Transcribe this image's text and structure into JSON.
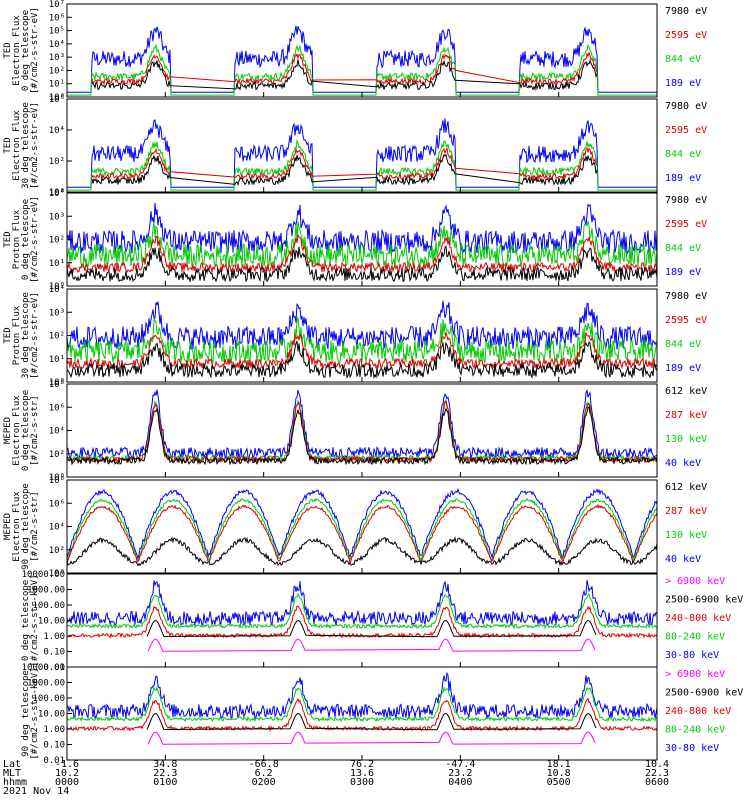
{
  "panels": [
    {
      "ylabel": [
        "TED",
        "Electron Flux",
        "0 deg telescope",
        "[#/cm2-s-str-eV]"
      ],
      "ticks": [
        "10⁰",
        "10¹",
        "10²",
        "10³",
        "10⁴",
        "10⁵",
        "10⁶",
        "10⁷"
      ],
      "legend": [
        {
          "text": "7980 eV",
          "color": "#000000"
        },
        {
          "text": "2595 eV",
          "color": "#e00000"
        },
        {
          "text": "844 eV",
          "color": "#00cc00"
        },
        {
          "text": "189 eV",
          "color": "#0000ff"
        }
      ]
    },
    {
      "ylabel": [
        "TED",
        "Electron Flux",
        "30 deg telescope",
        "[#/cm2-s-str-eV]"
      ],
      "ticks": [
        "10⁰",
        "10²",
        "10⁴",
        "10⁶"
      ],
      "legend": [
        {
          "text": "7980 eV",
          "color": "#000000"
        },
        {
          "text": "2595 eV",
          "color": "#e00000"
        },
        {
          "text": "844 eV",
          "color": "#00cc00"
        },
        {
          "text": "189 eV",
          "color": "#0000ff"
        }
      ]
    },
    {
      "ylabel": [
        "TED",
        "Proton Flux",
        "0 deg telescope",
        "[#/cm2-s-str-eV]"
      ],
      "ticks": [
        "10⁰",
        "10¹",
        "10²",
        "10³",
        "10⁴"
      ],
      "legend": [
        {
          "text": "7980 eV",
          "color": "#000000"
        },
        {
          "text": "2595 eV",
          "color": "#e00000"
        },
        {
          "text": "844 eV",
          "color": "#00cc00"
        },
        {
          "text": "189 eV",
          "color": "#0000ff"
        }
      ]
    },
    {
      "ylabel": [
        "TED",
        "Proton Flux",
        "30 deg telescope",
        "[#/cm2-s-str-eV]"
      ],
      "ticks": [
        "10⁰",
        "10¹",
        "10²",
        "10³",
        "10⁴"
      ],
      "legend": [
        {
          "text": "7980 eV",
          "color": "#000000"
        },
        {
          "text": "2595 eV",
          "color": "#e00000"
        },
        {
          "text": "844 eV",
          "color": "#00cc00"
        },
        {
          "text": "189 eV",
          "color": "#0000ff"
        }
      ]
    },
    {
      "ylabel": [
        "MEPED",
        "Electron Flux",
        "0 deg telescope",
        "[#/cm2-s-str]"
      ],
      "ticks": [
        "10⁰",
        "10²",
        "10⁴",
        "10⁶",
        "10⁸"
      ],
      "legend": [
        {
          "text": "612 keV",
          "color": "#000000"
        },
        {
          "text": "287 keV",
          "color": "#e00000"
        },
        {
          "text": "130 keV",
          "color": "#00cc00"
        },
        {
          "text": "40 keV",
          "color": "#0000ff"
        }
      ]
    },
    {
      "ylabel": [
        "MEPED",
        "Electron Flux",
        "90 deg telescope",
        "[#/cm2-s-str]"
      ],
      "ticks": [
        "10⁰",
        "10²",
        "10⁴",
        "10⁶",
        "10⁸"
      ],
      "legend": [
        {
          "text": "612 keV",
          "color": "#000000"
        },
        {
          "text": "287 keV",
          "color": "#e00000"
        },
        {
          "text": "130 keV",
          "color": "#00cc00"
        },
        {
          "text": "40 keV",
          "color": "#0000ff"
        }
      ]
    },
    {
      "ylabel": [
        "0 deg telescope",
        "[#/cm2-s-str-keV]"
      ],
      "ticks": [
        "0.01",
        "0.10",
        "1.00",
        "10.00",
        "100.00",
        "1000.00",
        "10000.00"
      ],
      "legend": [
        {
          "text": "> 6900 keV",
          "color": "#ff00ff"
        },
        {
          "text": "2500-6900 keV",
          "color": "#000000"
        },
        {
          "text": "240-800 keV",
          "color": "#e00000"
        },
        {
          "text": "80-240 keV",
          "color": "#00cc00"
        },
        {
          "text": "30-80 keV",
          "color": "#0000ff"
        }
      ]
    },
    {
      "ylabel": [
        "90 deg telescope",
        "[#/cm2-s-str-keV]"
      ],
      "ticks": [
        "0.01",
        "0.10",
        "1.00",
        "10.00",
        "100.00",
        "1000.00",
        "10000.00"
      ],
      "legend": [
        {
          "text": "> 6900 keV",
          "color": "#ff00ff"
        },
        {
          "text": "2500-6900 keV",
          "color": "#000000"
        },
        {
          "text": "240-800 keV",
          "color": "#e00000"
        },
        {
          "text": "80-240 keV",
          "color": "#00cc00"
        },
        {
          "text": "30-80 keV",
          "color": "#0000ff"
        }
      ]
    }
  ],
  "xaxis": {
    "row_labels": [
      "Lat",
      "MLT",
      "hhmm",
      "2021 Nov 14"
    ],
    "lat": [
      "-1.6",
      "34.8",
      "-66.8",
      "76.2",
      "-47.4",
      "18.1",
      "10.4"
    ],
    "mlt": [
      "10.2",
      "22.3",
      "6.2",
      "13.6",
      "23.2",
      "10.8",
      "22.3"
    ],
    "hhmm": [
      "0000",
      "0100",
      "0200",
      "0300",
      "0400",
      "0500",
      "0600"
    ]
  },
  "chart_data": {
    "type": "line",
    "title": "",
    "x_range_hours": [
      0,
      6
    ],
    "yscale": "log",
    "x": [
      "0000",
      "0100",
      "0200",
      "0300",
      "0400",
      "0500",
      "0600"
    ],
    "passes_hours": [
      0.9,
      2.35,
      3.85,
      5.3
    ],
    "series": [
      {
        "name": "189 eV",
        "color": "#0000ff"
      },
      {
        "name": "844 eV",
        "color": "#00cc00"
      },
      {
        "name": "2595 eV",
        "color": "#e00000"
      },
      {
        "name": "7980 eV",
        "color": "#000000"
      }
    ]
  },
  "colors": {
    "blue": "#0000ff",
    "green": "#00cc00",
    "red": "#e00000",
    "black": "#000000",
    "magenta": "#ff00ff"
  }
}
